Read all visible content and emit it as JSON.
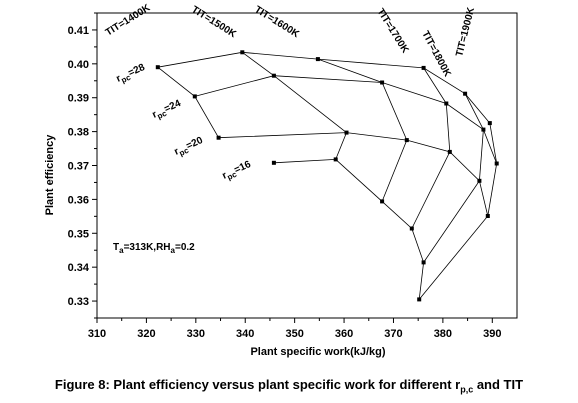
{
  "chart_data": {
    "type": "scatter",
    "xlabel": "Plant specific work(kJ/kg)",
    "ylabel": "Plant efficiency",
    "xlim": [
      310,
      395
    ],
    "ylim": [
      0.325,
      0.415
    ],
    "x_ticks": [
      310,
      320,
      330,
      340,
      350,
      360,
      370,
      380,
      390
    ],
    "y_ticks": [
      0.33,
      0.34,
      0.35,
      0.36,
      0.37,
      0.38,
      0.39,
      0.4,
      0.41
    ],
    "grid": false,
    "tit_labels": [
      "TIT=1400K",
      "TIT=1500K",
      "TIT=1600K",
      "TIT=1700K",
      "TIT=1800K",
      "TIT=1900K"
    ],
    "rpc_labels": [
      "28",
      "24",
      "20",
      "16"
    ],
    "rpc_symbol": "r",
    "rpc_sub": "pc",
    "condition_label": {
      "t_prefix": "T",
      "t_sub": "a",
      "t_value": "=313K,RH",
      "rh_sub": "a",
      "rh_value": "=0.2"
    },
    "points": [
      {
        "x": 322.3,
        "y": 0.399
      },
      {
        "x": 339.4,
        "y": 0.4034
      },
      {
        "x": 354.7,
        "y": 0.4014
      },
      {
        "x": 376.1,
        "y": 0.3988
      },
      {
        "x": 384.5,
        "y": 0.3912
      },
      {
        "x": 389.5,
        "y": 0.3825
      },
      {
        "x": 329.8,
        "y": 0.3904
      },
      {
        "x": 345.8,
        "y": 0.3965
      },
      {
        "x": 367.7,
        "y": 0.3945
      },
      {
        "x": 380.7,
        "y": 0.3883
      },
      {
        "x": 388.2,
        "y": 0.3806
      },
      {
        "x": 390.9,
        "y": 0.3706
      },
      {
        "x": 334.6,
        "y": 0.3782
      },
      {
        "x": 360.5,
        "y": 0.3797
      },
      {
        "x": 372.7,
        "y": 0.3775
      },
      {
        "x": 381.4,
        "y": 0.374
      },
      {
        "x": 387.4,
        "y": 0.3655
      },
      {
        "x": 389.1,
        "y": 0.3551
      },
      {
        "x": 345.8,
        "y": 0.3708
      },
      {
        "x": 358.3,
        "y": 0.3718
      },
      {
        "x": 367.7,
        "y": 0.3594
      },
      {
        "x": 373.7,
        "y": 0.3514
      },
      {
        "x": 376.1,
        "y": 0.3414
      },
      {
        "x": 375.2,
        "y": 0.3305
      }
    ],
    "rpc_curves": [
      [
        0,
        1,
        2,
        3,
        4,
        5
      ],
      [
        6,
        7,
        8,
        9,
        10,
        11
      ],
      [
        12,
        13,
        14,
        15,
        16,
        17
      ],
      [
        18,
        19,
        20,
        21,
        22,
        23
      ]
    ],
    "tit_curves": [
      [
        0,
        6,
        12
      ],
      [
        1,
        7,
        13,
        19
      ],
      [
        2,
        8,
        14,
        20
      ],
      [
        3,
        9,
        15,
        21
      ],
      [
        4,
        10,
        16,
        22
      ],
      [
        5,
        11,
        17,
        23
      ]
    ]
  },
  "caption": {
    "prefix": "Figure 8: Plant efficiency versus plant specific work for different r",
    "sub": "p,c",
    "suffix": " and TIT"
  }
}
